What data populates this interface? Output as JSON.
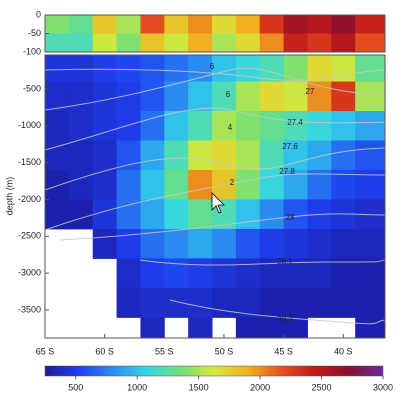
{
  "chart_data": {
    "type": "heatmap",
    "y_label": "depth (m)",
    "xlim": [
      65,
      36.5
    ],
    "xticks": [
      {
        "value": 65,
        "label": "65 S"
      },
      {
        "value": 60,
        "label": "60 S"
      },
      {
        "value": 55,
        "label": "55 S"
      },
      {
        "value": 50,
        "label": "50 S"
      },
      {
        "value": 45,
        "label": "45 S"
      },
      {
        "value": 40,
        "label": "40 S"
      }
    ],
    "ylim": [
      -3880,
      -40
    ],
    "yticks": [
      -500,
      -1000,
      -1500,
      -2000,
      -2500,
      -3000,
      -3500
    ],
    "top_ylim": [
      -100,
      0
    ],
    "top_yticks": [
      0,
      -50,
      -100
    ],
    "xbins": [
      65,
      63,
      61,
      59,
      57,
      55,
      53,
      51,
      49,
      47,
      45,
      43,
      41,
      39,
      36.5
    ],
    "ybins": [
      -40,
      -400,
      -800,
      -1200,
      -1600,
      -2000,
      -2400,
      -2800,
      -3200,
      -3600,
      -3880
    ],
    "top_ybins": [
      0,
      -50,
      -100
    ],
    "values": [
      [
        450,
        450,
        500,
        550,
        600,
        700,
        800,
        1000,
        1100,
        1200,
        1400,
        1700,
        1600,
        1300
      ],
      [
        400,
        400,
        450,
        500,
        600,
        800,
        1000,
        1200,
        1500,
        1700,
        1600,
        2000,
        2300,
        1500
      ],
      [
        350,
        400,
        450,
        500,
        700,
        1000,
        1200,
        1500,
        1400,
        1300,
        1200,
        1100,
        1000,
        900
      ],
      [
        350,
        350,
        400,
        600,
        900,
        1200,
        1600,
        1700,
        1500,
        1200,
        1000,
        900,
        700,
        600
      ],
      [
        300,
        350,
        400,
        700,
        1000,
        1300,
        2000,
        1800,
        1400,
        1100,
        900,
        700,
        550,
        500
      ],
      [
        300,
        300,
        450,
        700,
        900,
        1100,
        1300,
        1200,
        1000,
        800,
        600,
        500,
        450,
        400
      ],
      [
        null,
        null,
        350,
        500,
        700,
        800,
        900,
        800,
        600,
        500,
        450,
        400,
        350,
        350
      ],
      [
        null,
        null,
        null,
        400,
        500,
        550,
        500,
        450,
        400,
        350,
        350,
        350,
        300,
        300
      ],
      [
        null,
        null,
        null,
        350,
        400,
        400,
        400,
        350,
        350,
        300,
        300,
        300,
        300,
        300
      ],
      [
        null,
        null,
        null,
        null,
        350,
        null,
        350,
        null,
        300,
        300,
        300,
        null,
        null,
        300
      ]
    ],
    "top_values": [
      [
        1400,
        1300,
        1800,
        1500,
        2200,
        1800,
        2000,
        1700,
        1900,
        2300,
        2600,
        2500,
        2700,
        2400
      ],
      [
        1200,
        1200,
        1600,
        1400,
        1800,
        1600,
        1900,
        1500,
        1700,
        2000,
        2400,
        2300,
        2500,
        2200
      ]
    ],
    "clim": [
      250,
      3000
    ],
    "cticks": [
      500,
      1000,
      1500,
      2000,
      2500,
      3000
    ],
    "colormap": [
      "#1a1a9e",
      "#1f3ff0",
      "#2a8cf0",
      "#33d6e8",
      "#6ee07a",
      "#d8e83a",
      "#f0b020",
      "#e85020",
      "#c01818",
      "#8a1030",
      "#6a2aa0"
    ],
    "annotations": [
      "6",
      "6",
      "4",
      "2",
      "27",
      "27.4",
      "27.6",
      "27.8",
      "28",
      "28.1",
      "28.2"
    ]
  }
}
